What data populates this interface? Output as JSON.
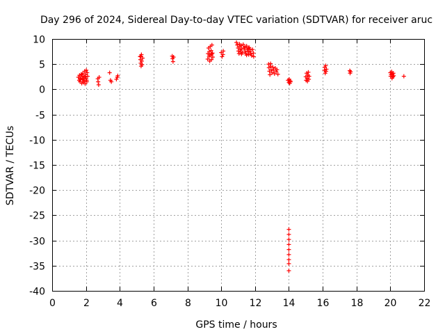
{
  "chart_data": {
    "type": "scatter",
    "title": "Day 296 of 2024, Sidereal Day-to-day VTEC variation (SDTVAR) for receiver aruc",
    "xlabel": "GPS time / hours",
    "ylabel": "SDTVAR / TECUs",
    "xlim": [
      0,
      22
    ],
    "ylim": [
      -40,
      10
    ],
    "xticks": [
      "0",
      "2",
      "4",
      "6",
      "8",
      "10",
      "12",
      "14",
      "16",
      "18",
      "20",
      "22"
    ],
    "yticks": [
      "10",
      "5",
      "0",
      "-5",
      "-10",
      "-15",
      "-20",
      "-25",
      "-30",
      "-35",
      "-40"
    ],
    "grid": true,
    "marker": "plus",
    "color": "#ff0000",
    "series": [
      {
        "name": "SDTVAR",
        "points": [
          [
            1.55,
            2.4
          ],
          [
            1.6,
            1.8
          ],
          [
            1.62,
            2.8
          ],
          [
            1.65,
            1.5
          ],
          [
            1.7,
            2.2
          ],
          [
            1.72,
            3.0
          ],
          [
            1.75,
            1.2
          ],
          [
            1.78,
            2.6
          ],
          [
            1.8,
            1.9
          ],
          [
            1.82,
            3.2
          ],
          [
            1.85,
            1.4
          ],
          [
            1.88,
            2.4
          ],
          [
            1.9,
            1.7
          ],
          [
            1.92,
            3.6
          ],
          [
            1.95,
            1.1
          ],
          [
            1.97,
            2.9
          ],
          [
            2.0,
            2.1
          ],
          [
            2.02,
            3.8
          ],
          [
            2.05,
            1.5
          ],
          [
            2.07,
            3.3
          ],
          [
            2.1,
            2.6
          ],
          [
            1.68,
            2.0
          ],
          [
            1.76,
            2.9
          ],
          [
            1.86,
            2.1
          ],
          [
            1.94,
            2.5
          ],
          [
            2.04,
            1.8
          ],
          [
            2.7,
            2.1
          ],
          [
            2.72,
            1.5
          ],
          [
            2.75,
            0.9
          ],
          [
            2.78,
            2.4
          ],
          [
            3.4,
            3.3
          ],
          [
            3.45,
            1.8
          ],
          [
            3.5,
            1.5
          ],
          [
            3.8,
            2.0
          ],
          [
            3.85,
            2.4
          ],
          [
            3.88,
            2.7
          ],
          [
            5.2,
            6.5
          ],
          [
            5.22,
            5.9
          ],
          [
            5.24,
            5.2
          ],
          [
            5.26,
            4.6
          ],
          [
            5.28,
            6.9
          ],
          [
            5.3,
            5.6
          ],
          [
            5.32,
            4.9
          ],
          [
            5.35,
            6.2
          ],
          [
            5.25,
            6.6
          ],
          [
            7.1,
            6.6
          ],
          [
            7.12,
            6.1
          ],
          [
            7.15,
            5.5
          ],
          [
            7.18,
            6.4
          ],
          [
            9.2,
            6.0
          ],
          [
            9.22,
            7.1
          ],
          [
            9.25,
            8.2
          ],
          [
            9.28,
            6.5
          ],
          [
            9.3,
            7.5
          ],
          [
            9.32,
            5.6
          ],
          [
            9.35,
            8.5
          ],
          [
            9.38,
            6.8
          ],
          [
            9.4,
            7.7
          ],
          [
            9.42,
            5.9
          ],
          [
            9.45,
            8.8
          ],
          [
            9.48,
            7.2
          ],
          [
            9.5,
            6.4
          ],
          [
            9.3,
            6.8
          ],
          [
            9.44,
            7.0
          ],
          [
            10.0,
            7.3
          ],
          [
            10.05,
            6.5
          ],
          [
            10.1,
            6.9
          ],
          [
            10.12,
            7.6
          ],
          [
            10.9,
            9.3
          ],
          [
            10.95,
            8.8
          ],
          [
            11.0,
            8.2
          ],
          [
            11.02,
            7.6
          ],
          [
            11.05,
            7.1
          ],
          [
            11.08,
            9.0
          ],
          [
            11.1,
            8.5
          ],
          [
            11.12,
            7.9
          ],
          [
            11.15,
            7.4
          ],
          [
            11.18,
            8.7
          ],
          [
            11.2,
            8.0
          ],
          [
            11.25,
            7.3
          ],
          [
            11.3,
            8.9
          ],
          [
            11.35,
            8.2
          ],
          [
            11.4,
            7.6
          ],
          [
            11.45,
            7.1
          ],
          [
            11.5,
            8.6
          ],
          [
            11.55,
            7.9
          ],
          [
            11.6,
            7.4
          ],
          [
            11.62,
            6.9
          ],
          [
            11.65,
            8.3
          ],
          [
            11.7,
            7.6
          ],
          [
            11.75,
            7.1
          ],
          [
            11.8,
            6.7
          ],
          [
            11.85,
            7.9
          ],
          [
            11.9,
            7.2
          ],
          [
            11.92,
            6.5
          ],
          [
            11.6,
            8.1
          ],
          [
            11.4,
            8.4
          ],
          [
            11.7,
            8.0
          ],
          [
            11.2,
            7.0
          ],
          [
            11.5,
            6.8
          ],
          [
            12.8,
            5.0
          ],
          [
            12.82,
            4.3
          ],
          [
            12.85,
            3.6
          ],
          [
            12.88,
            2.9
          ],
          [
            12.9,
            4.6
          ],
          [
            12.95,
            3.9
          ],
          [
            13.0,
            3.3
          ],
          [
            13.05,
            4.4
          ],
          [
            13.1,
            3.8
          ],
          [
            13.15,
            3.1
          ],
          [
            13.2,
            4.2
          ],
          [
            13.25,
            3.5
          ],
          [
            13.3,
            3.9
          ],
          [
            13.35,
            3.0
          ],
          [
            12.92,
            5.1
          ],
          [
            13.95,
            1.8
          ],
          [
            14.0,
            1.4
          ],
          [
            14.02,
            2.0
          ],
          [
            14.05,
            1.2
          ],
          [
            14.08,
            1.7
          ],
          [
            14.1,
            1.5
          ],
          [
            14.0,
            -27.8
          ],
          [
            14.0,
            -28.8
          ],
          [
            14.0,
            -29.8
          ],
          [
            14.0,
            -30.8
          ],
          [
            14.0,
            -31.8
          ],
          [
            14.0,
            -32.8
          ],
          [
            14.0,
            -33.8
          ],
          [
            14.0,
            -34.6
          ],
          [
            14.0,
            -36.0
          ],
          [
            15.0,
            2.5
          ],
          [
            15.02,
            1.8
          ],
          [
            15.05,
            3.2
          ],
          [
            15.08,
            2.2
          ],
          [
            15.1,
            1.6
          ],
          [
            15.12,
            2.8
          ],
          [
            15.15,
            3.4
          ],
          [
            15.18,
            2.0
          ],
          [
            15.2,
            2.6
          ],
          [
            16.1,
            3.8
          ],
          [
            16.12,
            4.4
          ],
          [
            16.15,
            3.2
          ],
          [
            16.18,
            4.7
          ],
          [
            16.2,
            3.6
          ],
          [
            16.22,
            4.0
          ],
          [
            17.6,
            3.7
          ],
          [
            17.62,
            3.2
          ],
          [
            17.65,
            3.5
          ],
          [
            20.0,
            3.3
          ],
          [
            20.02,
            2.6
          ],
          [
            20.05,
            2.9
          ],
          [
            20.08,
            3.5
          ],
          [
            20.1,
            2.2
          ],
          [
            20.12,
            3.0
          ],
          [
            20.15,
            2.5
          ],
          [
            20.18,
            3.2
          ],
          [
            20.2,
            2.7
          ],
          [
            20.8,
            2.6
          ]
        ]
      }
    ]
  }
}
